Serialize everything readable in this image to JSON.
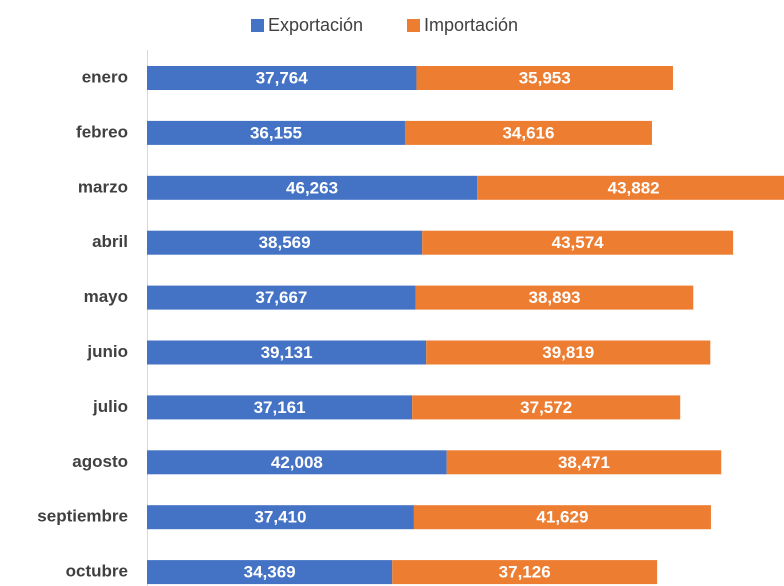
{
  "chart_data": {
    "type": "stacked-bar-horizontal",
    "categories": [
      "enero",
      "febreo",
      "marzo",
      "abril",
      "mayo",
      "junio",
      "julio",
      "agosto",
      "septiembre",
      "octubre"
    ],
    "series": [
      {
        "name": "Exportación",
        "color": "#4472c4",
        "values": [
          37764,
          36155,
          46263,
          38569,
          37667,
          39131,
          37161,
          42008,
          37410,
          34369
        ],
        "value_labels": [
          "37,764",
          "36,155",
          "46,263",
          "38,569",
          "37,667",
          "39,131",
          "37,161",
          "42,008",
          "37,410",
          "34,369"
        ]
      },
      {
        "name": "Importación",
        "color": "#ed7d31",
        "values": [
          35953,
          34616,
          43882,
          43574,
          38893,
          39819,
          37572,
          38471,
          41629,
          37126
        ],
        "value_labels": [
          "35,953",
          "34,616",
          "43,882",
          "43,574",
          "38,893",
          "39,819",
          "37,572",
          "38,471",
          "41,629",
          "37,126"
        ]
      }
    ],
    "legend": "top"
  }
}
